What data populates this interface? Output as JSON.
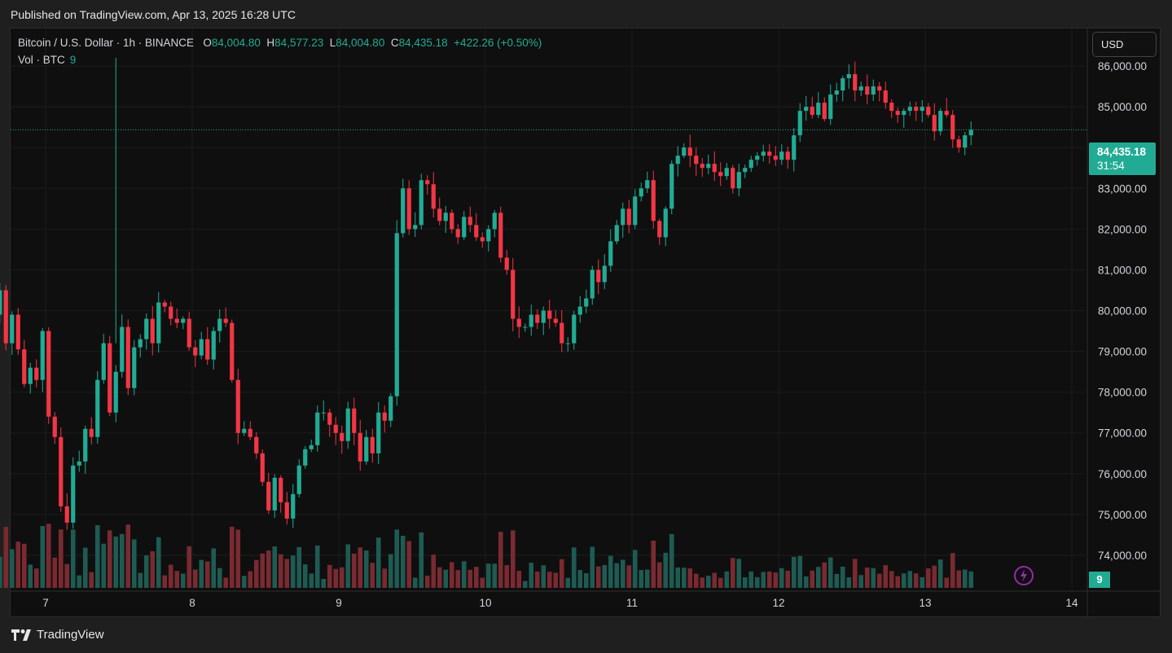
{
  "header": {
    "published": "Published on TradingView.com, Apr 13, 2025 16:28 UTC"
  },
  "legend": {
    "symbol": "Bitcoin / U.S. Dollar · 1h · BINANCE",
    "o_label": "O",
    "o_value": "84,004.80",
    "h_label": "H",
    "h_value": "84,577.23",
    "l_label": "L",
    "l_value": "84,004.80",
    "c_label": "C",
    "c_value": "84,435.18",
    "change": "+422.26 (+0.50%)",
    "vol_label": "Vol · BTC",
    "vol_value": "9"
  },
  "currency_button": "USD",
  "price_label": {
    "price": "84,435.18",
    "countdown": "31:54"
  },
  "volume_label": "9",
  "brand": "TradingView",
  "colors": {
    "up": "#22ab94",
    "down": "#f23645",
    "up_vol": "#1e5b52",
    "down_vol": "#7a2a31",
    "grid": "#1c1c1c"
  },
  "chart_data": {
    "type": "candlestick",
    "title": "Bitcoin / U.S. Dollar · 1h · BINANCE",
    "ylim": [
      73200,
      86900
    ],
    "y_ticks": [
      74000,
      75000,
      76000,
      77000,
      78000,
      79000,
      80000,
      81000,
      82000,
      83000,
      84000,
      85000,
      86000
    ],
    "y_tick_labels": [
      "74,000.00",
      "75,000.00",
      "76,000.00",
      "77,000.00",
      "78,000.00",
      "79,000.00",
      "80,000.00",
      "81,000.00",
      "82,000.00",
      "83,000.00",
      "84,000.00",
      "85,000.00",
      "86,000.00"
    ],
    "x_ticks": [
      "7",
      "8",
      "9",
      "10",
      "11",
      "12",
      "13",
      "14"
    ],
    "x_tick_hours": [
      8,
      32,
      56,
      80,
      104,
      128,
      152,
      176
    ],
    "last_price": 84435.18,
    "candles_hourly_close": [
      80500,
      79200,
      79900,
      79050,
      78200,
      78600,
      78300,
      79500,
      77400,
      76900,
      75200,
      74800,
      76200,
      76300,
      77100,
      76900,
      78300,
      79200,
      77500,
      78500,
      79600,
      78100,
      79100,
      79300,
      79800,
      79200,
      80200,
      80100,
      79800,
      79700,
      79800,
      79100,
      78900,
      79300,
      78800,
      79500,
      79800,
      79700,
      78300,
      77000,
      77100,
      76900,
      76500,
      75800,
      75100,
      75900,
      75300,
      74900,
      75500,
      76200,
      76600,
      76700,
      77500,
      77500,
      77200,
      77000,
      76800,
      77600,
      77000,
      76300,
      76900,
      76500,
      77500,
      77300,
      77900,
      81900,
      83000,
      82000,
      82100,
      83200,
      83100,
      82500,
      82200,
      82400,
      82000,
      81800,
      82300,
      82100,
      81800,
      81700,
      82000,
      82400,
      81300,
      81000,
      79800,
      79600,
      79600,
      79900,
      79700,
      80000,
      79800,
      79700,
      79200,
      79200,
      79900,
      80100,
      80300,
      81000,
      80700,
      81100,
      81700,
      82100,
      82500,
      82100,
      82800,
      83000,
      83200,
      82200,
      81800,
      82500,
      83600,
      83800,
      84000,
      83800,
      83600,
      83500,
      83600,
      83400,
      83300,
      83500,
      83000,
      83400,
      83500,
      83700,
      83800,
      83900,
      83800,
      83700,
      83900,
      83700,
      84300,
      84900,
      85000,
      84800,
      85100,
      84700,
      85300,
      85400,
      85700,
      85800,
      85400,
      85500,
      85300,
      85500,
      85400,
      85100,
      84900,
      84800,
      84900,
      85000,
      84900,
      85000,
      84800,
      84400,
      84900,
      84800,
      84200,
      84000,
      84300,
      84435
    ],
    "volume_note": "volume bars in BTC (arbitrary scale, last value 9)"
  }
}
